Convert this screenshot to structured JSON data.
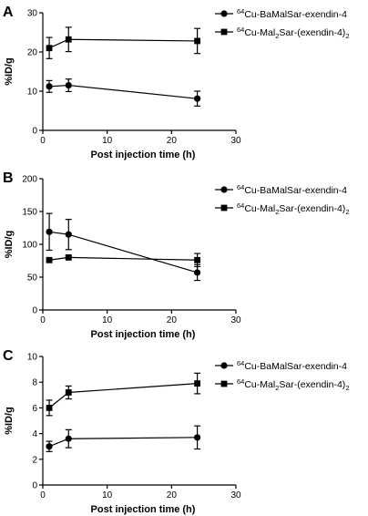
{
  "chart_data": [
    {
      "type": "line",
      "panel_label": "A",
      "xlabel": "Post injection time (h)",
      "ylabel": "%ID/g",
      "xlim": [
        0,
        30
      ],
      "ylim": [
        0,
        30
      ],
      "xticks": [
        0,
        10,
        20,
        30
      ],
      "yticks": [
        0,
        10,
        20,
        30
      ],
      "grid": false,
      "legend_position": "top-right",
      "x": [
        1,
        4,
        24
      ],
      "series": [
        {
          "name_prefix": "64",
          "name": "Cu-BaMalSar-exendin-4",
          "marker": "circle",
          "values": [
            11.2,
            11.5,
            8.1
          ],
          "errors": [
            1.5,
            1.6,
            1.9
          ]
        },
        {
          "name_prefix": "64",
          "name": "Cu-Mal",
          "name_sub": "2",
          "name_suffix": "Sar-(exendin-4)",
          "name_sub2": "2",
          "marker": "square",
          "values": [
            21.0,
            23.2,
            22.8
          ],
          "errors": [
            2.7,
            3.1,
            3.2
          ]
        }
      ]
    },
    {
      "type": "line",
      "panel_label": "B",
      "xlabel": "Post injection time (h)",
      "ylabel": "%ID/g",
      "xlim": [
        0,
        30
      ],
      "ylim": [
        0,
        200
      ],
      "xticks": [
        0,
        10,
        20,
        30
      ],
      "yticks": [
        0,
        50,
        100,
        150,
        200
      ],
      "grid": false,
      "legend_position": "right",
      "x": [
        1,
        4,
        24
      ],
      "series": [
        {
          "name_prefix": "64",
          "name": "Cu-BaMalSar-exendin-4",
          "marker": "circle",
          "values": [
            119,
            115,
            57
          ],
          "errors": [
            28,
            23,
            12
          ]
        },
        {
          "name_prefix": "64",
          "name": "Cu-Mal",
          "name_sub": "2",
          "name_suffix": "Sar-(exendin-4)",
          "name_sub2": "2",
          "marker": "square",
          "values": [
            76,
            80,
            76
          ],
          "errors": [
            2,
            2,
            10
          ]
        }
      ]
    },
    {
      "type": "line",
      "panel_label": "C",
      "xlabel": "Post injection time (h)",
      "ylabel": "%ID/g",
      "xlim": [
        0,
        30
      ],
      "ylim": [
        0,
        10
      ],
      "xticks": [
        0,
        10,
        20,
        30
      ],
      "yticks": [
        0,
        2,
        4,
        6,
        8,
        10
      ],
      "grid": false,
      "legend_position": "top-right",
      "x": [
        1,
        4,
        24
      ],
      "series": [
        {
          "name_prefix": "64",
          "name": "Cu-BaMalSar-exendin-4",
          "marker": "circle",
          "values": [
            3.0,
            3.6,
            3.7
          ],
          "errors": [
            0.4,
            0.7,
            0.9
          ]
        },
        {
          "name_prefix": "64",
          "name": "Cu-Mal",
          "name_sub": "2",
          "name_suffix": "Sar-(exendin-4)",
          "name_sub2": "2",
          "marker": "square",
          "values": [
            6.0,
            7.2,
            7.9
          ],
          "errors": [
            0.6,
            0.5,
            0.8
          ]
        }
      ]
    }
  ]
}
